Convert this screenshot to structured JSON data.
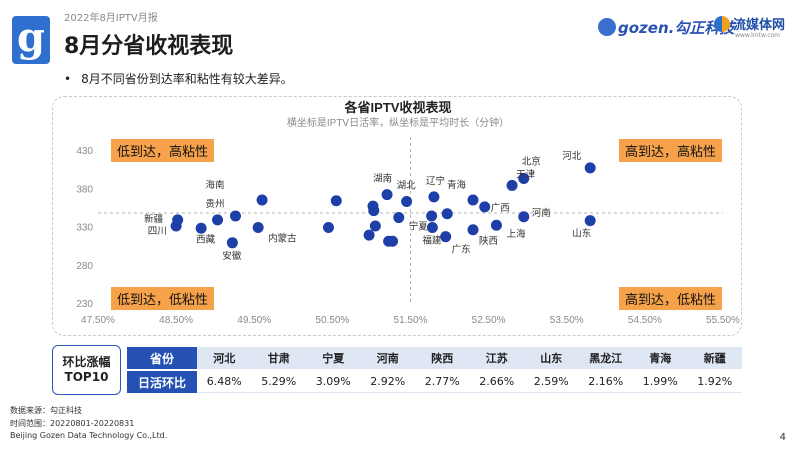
{
  "header": {
    "report_label": "2022年8月IPTV月报",
    "title": "8月分省收视表现",
    "logo_letter": "g",
    "brand_gozen": "gozen.勾正科技",
    "brand_lmtw_name": "流媒体网",
    "brand_lmtw_url": "www.lmtw.com"
  },
  "bullet": "8月不同省份到达率和粘性有较大差异。",
  "chart_data": {
    "type": "scatter",
    "title": "各省IPTV收视表现",
    "subtitle": "横坐标是IPTV日活率，纵坐标是平均时长（分钟）",
    "xlabel": "",
    "ylabel": "",
    "xlim": [
      47.5,
      55.5
    ],
    "ylim": [
      230,
      430
    ],
    "x_ticks": [
      "47.50%",
      "48.50%",
      "49.50%",
      "50.50%",
      "51.50%",
      "52.50%",
      "53.50%",
      "54.50%",
      "55.50%"
    ],
    "y_ticks": [
      "230",
      "280",
      "330",
      "380",
      "430"
    ],
    "x_mean": 51.5,
    "y_mean": 349,
    "grid": false,
    "quadrants": {
      "top_left": "低到达，高粘性",
      "top_right": "高到达，高粘性",
      "bottom_left": "低到达，低粘性",
      "bottom_right": "高到达，低粘性"
    },
    "points": [
      {
        "label": "新疆",
        "x": 48.5,
        "y": 332
      },
      {
        "label": "四川",
        "x": 48.52,
        "y": 340
      },
      {
        "label": "西藏",
        "x": 48.82,
        "y": 329
      },
      {
        "label": "贵州",
        "x": 49.03,
        "y": 340
      },
      {
        "label": "海南",
        "x": 49.26,
        "y": 345
      },
      {
        "label": "安徽",
        "x": 49.22,
        "y": 310
      },
      {
        "label": "内蒙古",
        "x": 49.55,
        "y": 330
      },
      {
        "label": "",
        "x": 49.6,
        "y": 366
      },
      {
        "label": "",
        "x": 50.45,
        "y": 330
      },
      {
        "label": "",
        "x": 50.55,
        "y": 365
      },
      {
        "label": "",
        "x": 51.02,
        "y": 358
      },
      {
        "label": "",
        "x": 51.03,
        "y": 352
      },
      {
        "label": "",
        "x": 51.05,
        "y": 332
      },
      {
        "label": "",
        "x": 50.97,
        "y": 320
      },
      {
        "label": "湖南",
        "x": 51.2,
        "y": 373
      },
      {
        "label": "湖北",
        "x": 51.45,
        "y": 364
      },
      {
        "label": "宁夏",
        "x": 51.35,
        "y": 343
      },
      {
        "label": "",
        "x": 51.22,
        "y": 312
      },
      {
        "label": "",
        "x": 51.27,
        "y": 312
      },
      {
        "label": "辽宁",
        "x": 51.8,
        "y": 370
      },
      {
        "label": "",
        "x": 51.77,
        "y": 345
      },
      {
        "label": "福建",
        "x": 51.78,
        "y": 330
      },
      {
        "label": "广东",
        "x": 51.95,
        "y": 318
      },
      {
        "label": "",
        "x": 51.97,
        "y": 348
      },
      {
        "label": "青海",
        "x": 52.3,
        "y": 366
      },
      {
        "label": "广西",
        "x": 52.45,
        "y": 357
      },
      {
        "label": "陕西",
        "x": 52.3,
        "y": 327
      },
      {
        "label": "北京",
        "x": 52.95,
        "y": 394
      },
      {
        "label": "天津",
        "x": 52.8,
        "y": 385
      },
      {
        "label": "河南",
        "x": 52.95,
        "y": 344
      },
      {
        "label": "上海",
        "x": 52.6,
        "y": 333
      },
      {
        "label": "河北",
        "x": 53.8,
        "y": 408
      },
      {
        "label": "山东",
        "x": 53.8,
        "y": 339
      }
    ]
  },
  "table": {
    "label_line1": "环比涨幅",
    "label_line2": "TOP10",
    "province_header": "省份",
    "value_header": "日活环比",
    "provinces": [
      "河北",
      "甘肃",
      "宁夏",
      "河南",
      "陕西",
      "江苏",
      "山东",
      "黑龙江",
      "青海",
      "新疆"
    ],
    "values": [
      "6.48%",
      "5.29%",
      "3.09%",
      "2.92%",
      "2.77%",
      "2.66%",
      "2.59%",
      "2.16%",
      "1.99%",
      "1.92%"
    ]
  },
  "footer": {
    "source": "数据来源：勾正科技",
    "range": "时间范围：20220801-20220831",
    "company": "Beijing Gozen Data Technology Co.,Ltd.",
    "page": "4"
  },
  "colors": {
    "point": "#1f3fa8",
    "quadrant_fill": "#f5a24a",
    "table_header": "#2451b3",
    "brand_blue": "#2f6fd0"
  }
}
